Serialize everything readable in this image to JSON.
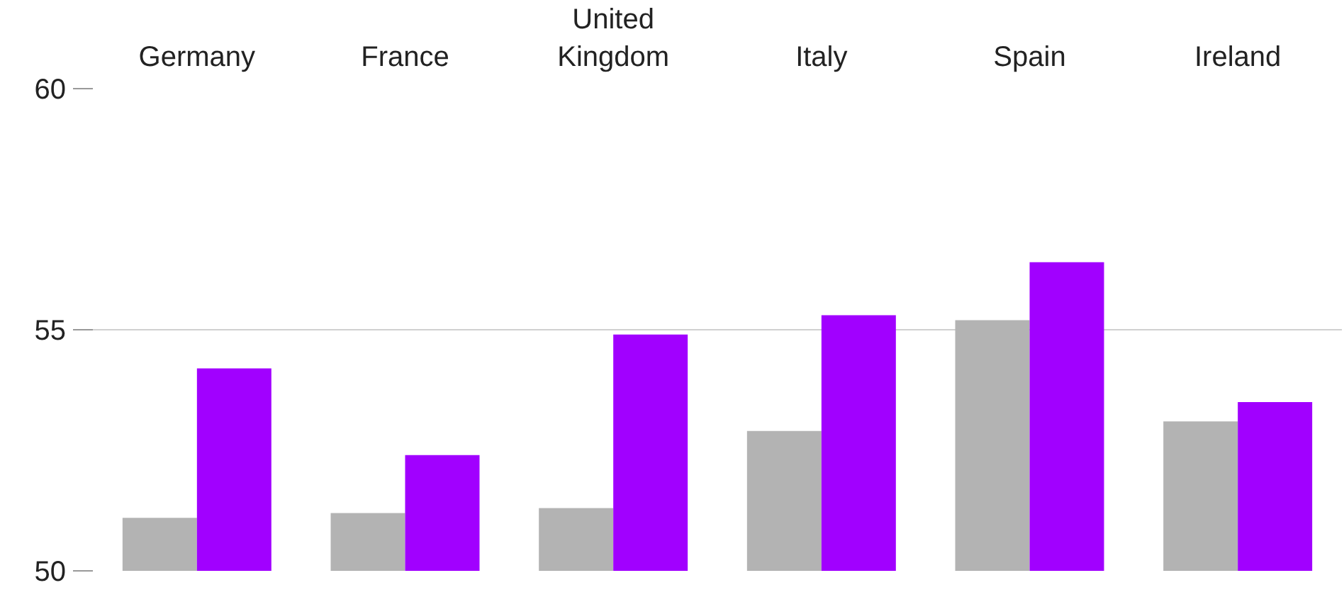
{
  "chart_data": {
    "type": "bar",
    "categories": [
      "Germany",
      "France",
      "United Kingdom",
      "Italy",
      "Spain",
      "Ireland"
    ],
    "series": [
      {
        "color": "#b3b3b3",
        "values": [
          51.1,
          51.2,
          51.3,
          52.9,
          55.2,
          53.1
        ]
      },
      {
        "color": "#a100ff",
        "values": [
          54.2,
          52.4,
          54.9,
          55.3,
          56.4,
          53.5
        ]
      }
    ],
    "ylim": [
      50,
      60
    ],
    "yticks": [
      50,
      55,
      60
    ],
    "grid": "y"
  }
}
